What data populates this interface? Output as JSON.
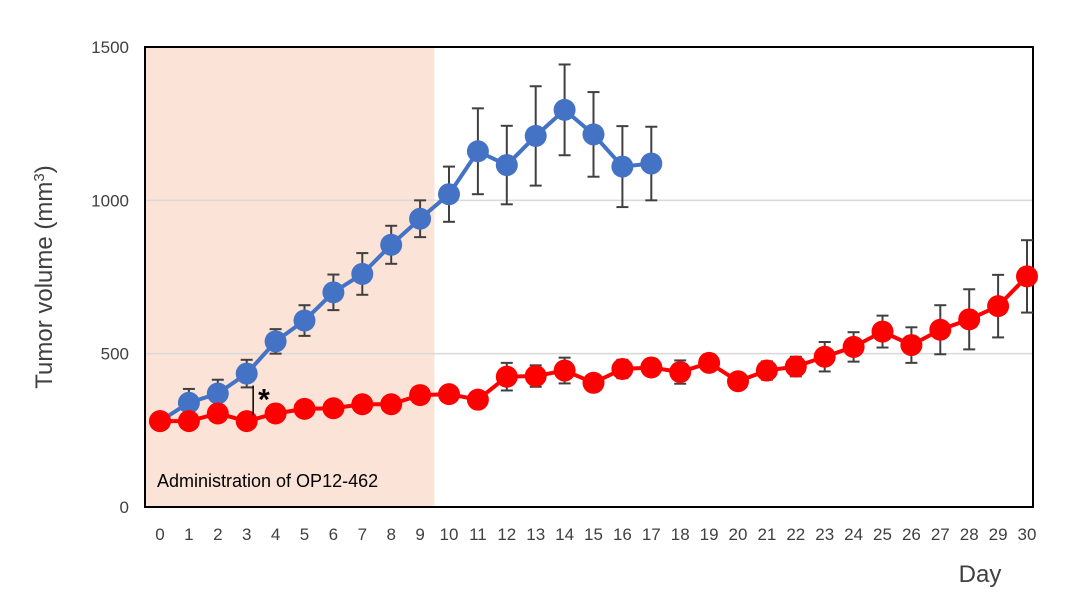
{
  "chart_data": {
    "type": "line",
    "ylabel": "Tumor volume (mm",
    "ylabel_sup": "3",
    "ylabel_close": ")",
    "xlabel": "Day",
    "ylim": [
      0,
      1500
    ],
    "yticks": [
      "0",
      "500",
      "1000",
      "1500"
    ],
    "xlim": [
      0,
      30
    ],
    "x": [
      0,
      1,
      2,
      3,
      4,
      5,
      6,
      7,
      8,
      9,
      10,
      11,
      12,
      13,
      14,
      15,
      16,
      17,
      18,
      19,
      20,
      21,
      22,
      23,
      24,
      25,
      26,
      27,
      28,
      29,
      30
    ],
    "grid_y": true,
    "shaded_region": {
      "x_start": -0.5,
      "x_end": 9.5,
      "label": "Administration of OP12-462",
      "color": "#fbe3d8"
    },
    "significance": {
      "x": 3.5,
      "label": "*"
    },
    "series": [
      {
        "color": "#4472c4",
        "x": [
          0,
          1,
          2,
          3,
          4,
          5,
          6,
          7,
          8,
          9,
          10,
          11,
          12,
          13,
          14,
          15,
          16,
          17
        ],
        "values": [
          280,
          340,
          370,
          435,
          540,
          608,
          700,
          760,
          855,
          940,
          1020,
          1160,
          1115,
          1210,
          1295,
          1215,
          1110,
          1120
        ],
        "errors": [
          15,
          45,
          45,
          45,
          40,
          50,
          58,
          68,
          62,
          60,
          90,
          140,
          128,
          162,
          148,
          138,
          132,
          120
        ]
      },
      {
        "color": "#ff0000",
        "x": [
          0,
          1,
          2,
          3,
          4,
          5,
          6,
          7,
          8,
          9,
          10,
          11,
          12,
          13,
          14,
          15,
          16,
          17,
          18,
          19,
          20,
          21,
          22,
          23,
          24,
          25,
          26,
          27,
          28,
          29,
          30
        ],
        "values": [
          280,
          280,
          305,
          280,
          305,
          320,
          322,
          335,
          335,
          365,
          368,
          350,
          425,
          427,
          445,
          405,
          450,
          455,
          440,
          470,
          410,
          445,
          458,
          490,
          522,
          572,
          528,
          578,
          612,
          655,
          752
        ],
        "errors": [
          10,
          10,
          12,
          10,
          10,
          15,
          12,
          15,
          15,
          12,
          15,
          20,
          45,
          35,
          42,
          25,
          30,
          25,
          38,
          28,
          25,
          30,
          32,
          48,
          48,
          52,
          58,
          80,
          98,
          102,
          118
        ]
      }
    ]
  }
}
